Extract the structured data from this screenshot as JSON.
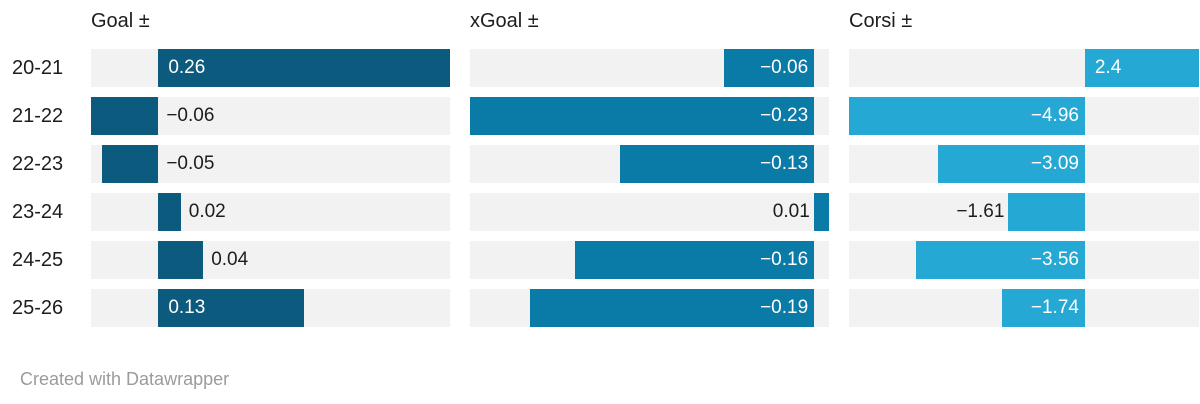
{
  "chart_data": {
    "type": "bar",
    "orientation": "horizontal",
    "grid": false,
    "legend": "none",
    "categories": [
      "20-21",
      "21-22",
      "22-23",
      "23-24",
      "24-25",
      "25-26"
    ],
    "series": [
      {
        "name": "Goal ±",
        "values": [
          0.26,
          -0.06,
          -0.05,
          0.02,
          0.04,
          0.13
        ],
        "labels": [
          "0.26",
          "−0.06",
          "−0.05",
          "0.02",
          "0.04",
          "0.13"
        ],
        "color": "#0c5a7d",
        "domain": [
          -0.06,
          0.26
        ]
      },
      {
        "name": "xGoal ±",
        "values": [
          -0.06,
          -0.23,
          -0.13,
          0.01,
          -0.16,
          -0.19
        ],
        "labels": [
          "−0.06",
          "−0.23",
          "−0.13",
          "0.01",
          "−0.16",
          "−0.19"
        ],
        "color": "#0a7aa6",
        "domain": [
          -0.23,
          0.01
        ]
      },
      {
        "name": "Corsi ±",
        "values": [
          2.4,
          -4.96,
          -3.09,
          -1.61,
          -3.56,
          -1.74
        ],
        "labels": [
          "2.4",
          "−4.96",
          "−3.09",
          "−1.61",
          "−3.56",
          "−1.74"
        ],
        "color": "#25a9d4",
        "domain": [
          -4.96,
          2.4
        ]
      }
    ],
    "track_color": "#f2f2f2",
    "label_color_inside": "#ffffff",
    "label_color_outside": "#1d1d1d",
    "row_label_color": "#1d1d1d",
    "header_color": "#1d1d1d"
  },
  "footer": {
    "credit": "Created with Datawrapper"
  }
}
